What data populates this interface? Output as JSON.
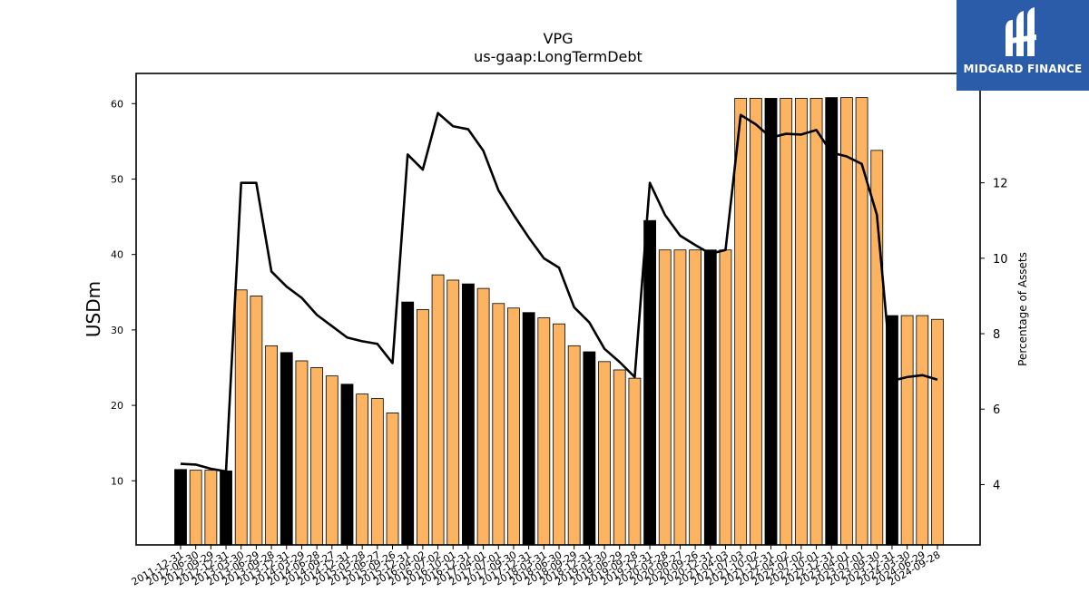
{
  "title": "VPG",
  "subtitle": "us-gaap:LongTermDebt",
  "brand": {
    "name": "MIDGARD FINANCE",
    "color": "#2a5caa"
  },
  "colors": {
    "bar_default": "#fdb462",
    "bar_highlight": "#000000",
    "line": "#000000"
  },
  "chart_data": {
    "type": "bar",
    "xlabel": "",
    "ylabel": "USDm",
    "y2label": "Percentage of Assets",
    "ylim": [
      1.5,
      64
    ],
    "y2lim": [
      2.4,
      14.9
    ],
    "yticks": [
      10,
      20,
      30,
      40,
      50,
      60
    ],
    "y2ticks": [
      4,
      6,
      8,
      10,
      12
    ],
    "categories": [
      "2011-12-31",
      "2012-06-30",
      "2012-09-29",
      "2012-12-31",
      "2013-03-30",
      "2013-06-29",
      "2013-09-28",
      "2013-12-31",
      "2014-03-29",
      "2014-06-28",
      "2014-09-27",
      "2014-12-31",
      "2015-03-28",
      "2015-06-27",
      "2015-09-26",
      "2015-12-31",
      "2016-04-02",
      "2016-07-02",
      "2016-10-01",
      "2016-12-31",
      "2017-04-01",
      "2017-07-01",
      "2017-09-30",
      "2017-12-31",
      "2018-03-31",
      "2018-06-30",
      "2018-09-29",
      "2018-12-31",
      "2019-03-30",
      "2019-06-29",
      "2019-09-28",
      "2019-12-31",
      "2020-03-28",
      "2020-06-27",
      "2020-09-26",
      "2020-12-31",
      "2021-04-03",
      "2021-07-03",
      "2021-10-02",
      "2021-12-31",
      "2022-04-02",
      "2022-07-02",
      "2022-10-01",
      "2022-12-31",
      "2023-04-01",
      "2023-07-01",
      "2023-09-30",
      "2023-12-31",
      "2024-03-30",
      "2024-06-29",
      "2024-09-28"
    ],
    "highlight": [
      1,
      0,
      0,
      1,
      0,
      0,
      0,
      1,
      0,
      0,
      0,
      1,
      0,
      0,
      0,
      1,
      0,
      0,
      0,
      1,
      0,
      0,
      0,
      1,
      0,
      0,
      0,
      1,
      0,
      0,
      0,
      1,
      0,
      0,
      0,
      1,
      0,
      0,
      0,
      1,
      0,
      0,
      0,
      1,
      0,
      0,
      0,
      1,
      0,
      0,
      0
    ],
    "series": [
      {
        "type": "bar",
        "axis": "left",
        "values": [
          11.5,
          11.4,
          11.4,
          11.3,
          35.3,
          34.5,
          27.9,
          27.0,
          25.9,
          25.0,
          23.9,
          22.8,
          21.5,
          20.9,
          19.0,
          33.7,
          32.7,
          37.3,
          36.6,
          36.1,
          35.5,
          33.5,
          32.9,
          32.3,
          31.6,
          30.8,
          27.9,
          27.1,
          25.8,
          24.7,
          23.6,
          44.5,
          40.6,
          40.6,
          40.6,
          40.6,
          40.6,
          60.7,
          60.7,
          60.7,
          60.7,
          60.7,
          60.7,
          60.8,
          60.8,
          60.8,
          53.8,
          31.9,
          31.9,
          31.9,
          31.4
        ]
      },
      {
        "type": "line",
        "axis": "right",
        "values": [
          4.55,
          4.53,
          4.42,
          4.35,
          12.0,
          12.0,
          9.65,
          9.25,
          8.95,
          8.5,
          8.2,
          7.9,
          7.8,
          7.73,
          7.22,
          12.75,
          12.35,
          13.85,
          13.5,
          13.42,
          12.85,
          11.8,
          11.15,
          10.55,
          10.0,
          9.75,
          8.7,
          8.3,
          7.6,
          7.25,
          6.85,
          12.0,
          11.15,
          10.6,
          10.35,
          10.12,
          10.22,
          13.8,
          13.55,
          13.2,
          13.3,
          13.28,
          13.4,
          12.8,
          12.7,
          12.5,
          11.15,
          6.75,
          6.85,
          6.9,
          6.78
        ]
      }
    ]
  }
}
